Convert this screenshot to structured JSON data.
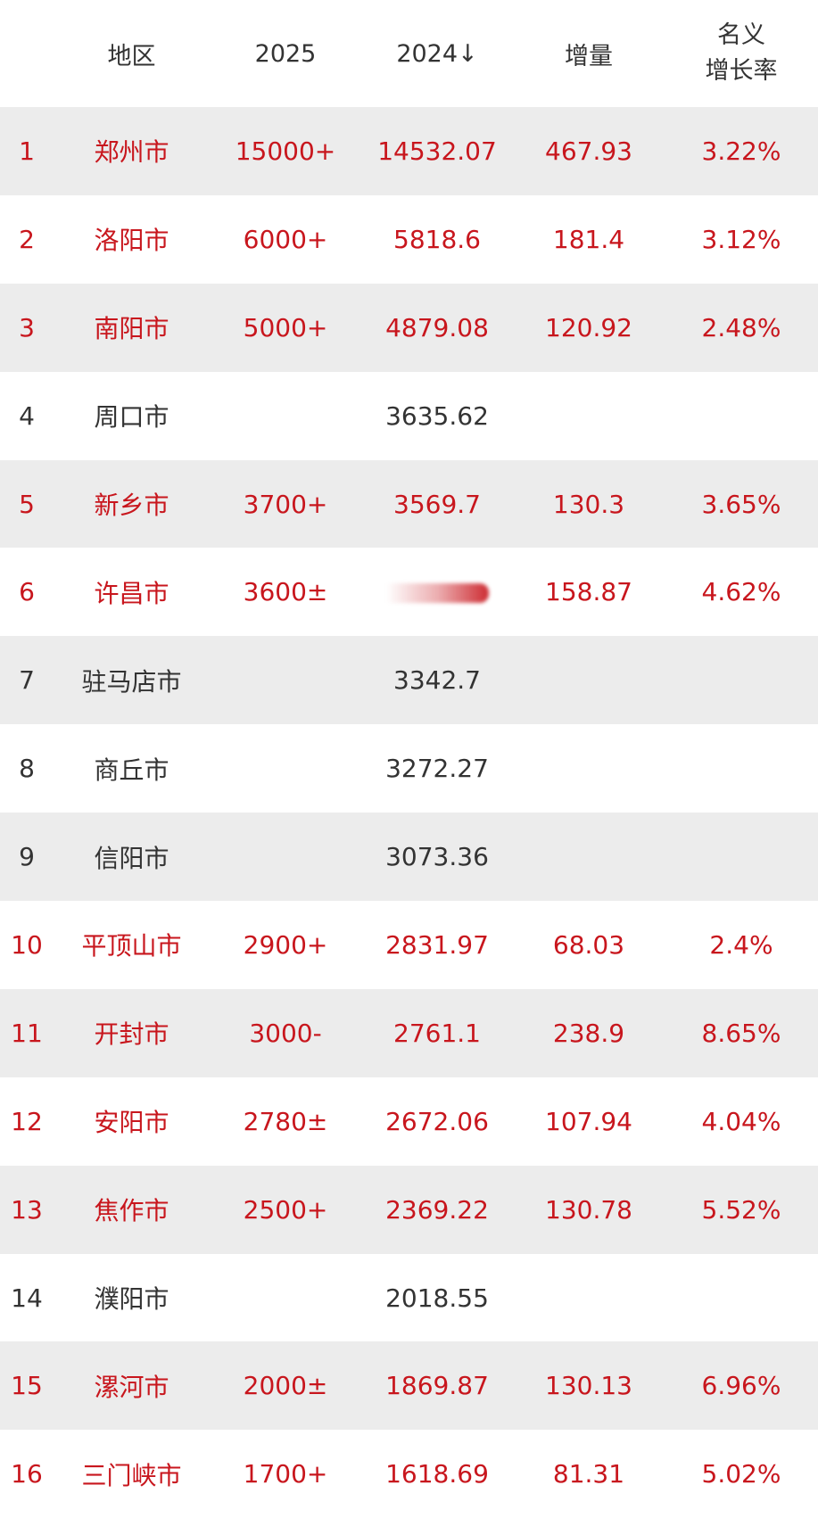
{
  "header": {
    "index": "",
    "region": "地区",
    "y2025": "2025",
    "y2024": "2024↓",
    "increase": "增量",
    "rate_line1": "名义",
    "rate_line2": "增长率"
  },
  "colors": {
    "highlight": "#c8161d",
    "normal": "#333333",
    "stripe": "#ececec"
  },
  "rows": [
    {
      "index": "1",
      "region": "郑州市",
      "y2025": "15000+",
      "y2024": "14532.07",
      "increase": "467.93",
      "rate": "3.22%",
      "highlight": true
    },
    {
      "index": "2",
      "region": "洛阳市",
      "y2025": "6000+",
      "y2024": "5818.6",
      "increase": "181.4",
      "rate": "3.12%",
      "highlight": true
    },
    {
      "index": "3",
      "region": "南阳市",
      "y2025": "5000+",
      "y2024": "4879.08",
      "increase": "120.92",
      "rate": "2.48%",
      "highlight": true
    },
    {
      "index": "4",
      "region": "周口市",
      "y2025": "",
      "y2024": "3635.62",
      "increase": "",
      "rate": "",
      "highlight": false
    },
    {
      "index": "5",
      "region": "新乡市",
      "y2025": "3700+",
      "y2024": "3569.7",
      "increase": "130.3",
      "rate": "3.65%",
      "highlight": true
    },
    {
      "index": "6",
      "region": "许昌市",
      "y2025": "3600±",
      "y2024": "",
      "y2024_blurred": true,
      "increase": "158.87",
      "rate": "4.62%",
      "highlight": true
    },
    {
      "index": "7",
      "region": "驻马店市",
      "y2025": "",
      "y2024": "3342.7",
      "increase": "",
      "rate": "",
      "highlight": false
    },
    {
      "index": "8",
      "region": "商丘市",
      "y2025": "",
      "y2024": "3272.27",
      "increase": "",
      "rate": "",
      "highlight": false
    },
    {
      "index": "9",
      "region": "信阳市",
      "y2025": "",
      "y2024": "3073.36",
      "increase": "",
      "rate": "",
      "highlight": false
    },
    {
      "index": "10",
      "region": "平顶山市",
      "y2025": "2900+",
      "y2024": "2831.97",
      "increase": "68.03",
      "rate": "2.4%",
      "highlight": true
    },
    {
      "index": "11",
      "region": "开封市",
      "y2025": "3000-",
      "y2024": "2761.1",
      "increase": "238.9",
      "rate": "8.65%",
      "highlight": true
    },
    {
      "index": "12",
      "region": "安阳市",
      "y2025": "2780±",
      "y2024": "2672.06",
      "increase": "107.94",
      "rate": "4.04%",
      "highlight": true
    },
    {
      "index": "13",
      "region": "焦作市",
      "y2025": "2500+",
      "y2024": "2369.22",
      "increase": "130.78",
      "rate": "5.52%",
      "highlight": true
    },
    {
      "index": "14",
      "region": "濮阳市",
      "y2025": "",
      "y2024": "2018.55",
      "increase": "",
      "rate": "",
      "highlight": false
    },
    {
      "index": "15",
      "region": "漯河市",
      "y2025": "2000±",
      "y2024": "1869.87",
      "increase": "130.13",
      "rate": "6.96%",
      "highlight": true
    },
    {
      "index": "16",
      "region": "三门峡市",
      "y2025": "1700+",
      "y2024": "1618.69",
      "increase": "81.31",
      "rate": "5.02%",
      "highlight": true
    }
  ]
}
